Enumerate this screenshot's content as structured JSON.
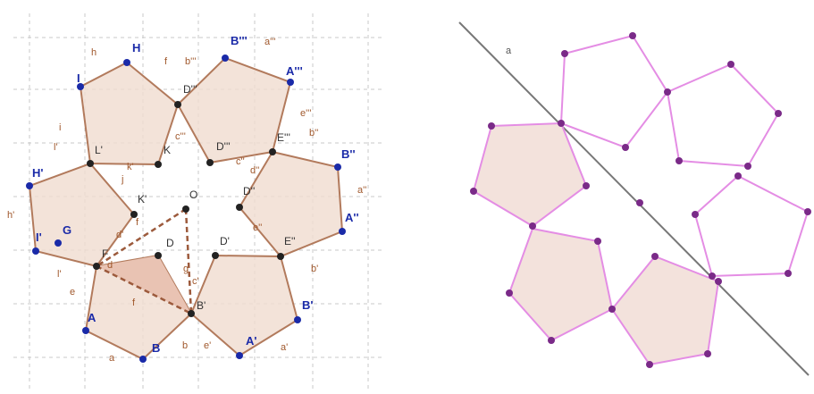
{
  "left_panel": {
    "point_labels": {
      "H": "H",
      "I": "I",
      "B3": "B'''",
      "A3": "A'''",
      "D3top": "D'''",
      "D3": "D'''",
      "E3": "E'''",
      "B2": "B''",
      "D2": "D''",
      "A2": "A''",
      "E2": "E''",
      "L": "L'",
      "K": "K",
      "H1": "H'",
      "K1": "K'",
      "O": "O",
      "I1": "I'",
      "G": "G",
      "F": "F",
      "D": "D",
      "D1": "D'",
      "B1": "B'",
      "A": "A",
      "B": "B",
      "A1": "A'"
    },
    "side_labels": {
      "h": "h",
      "f": "f",
      "b3": "b'''",
      "a3": "a'''",
      "i": "i",
      "c3": "c'''",
      "e3": "e'''",
      "b2": "b''",
      "l1": "l'",
      "k1": "k'",
      "j": "j",
      "c2": "c''",
      "d2": "d''",
      "a2": "a''",
      "h1": "h'",
      "f1": "f",
      "d1": "d'",
      "e2": "e''",
      "l": "l'",
      "d": "d",
      "g": "g",
      "c1": "c'",
      "b1": "b'",
      "e": "e",
      "f2": "f",
      "b": "b",
      "e1": "e'",
      "a1": "a'",
      "a": "a"
    }
  },
  "right_panel": {
    "line_label": "a"
  },
  "colors": {
    "left_stroke": "#b27a5c",
    "left_fill": "#f0dcd0",
    "right_stroke": "#e48de4",
    "right_fill": "#f3e2dc",
    "point_purple": "#7a2a88",
    "point_blue": "#1a2aa8"
  }
}
